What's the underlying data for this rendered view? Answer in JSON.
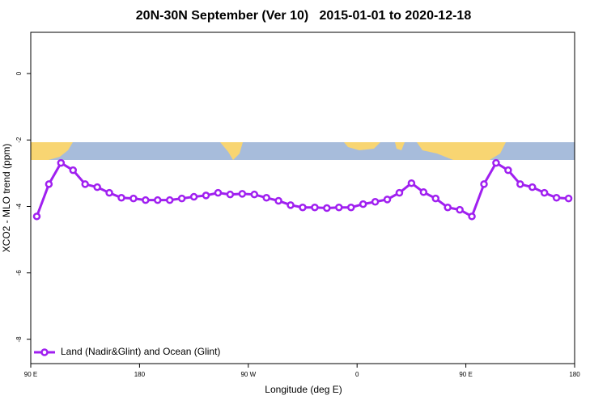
{
  "chart_data": {
    "type": "line",
    "title": "20N-30N September (Ver 10)   2015-01-01 to 2020-12-18",
    "x_label": "Longitude (deg E)",
    "y_label": "XCO2 - MLO trend (ppm)",
    "x": [
      95,
      105,
      115,
      125,
      135,
      145,
      155,
      165,
      175,
      185,
      195,
      205,
      215,
      225,
      235,
      245,
      255,
      265,
      275,
      285,
      295,
      305,
      315,
      325,
      335,
      345,
      355,
      365,
      375,
      385,
      395,
      405,
      415,
      425,
      435,
      445,
      455,
      465,
      475,
      485,
      495,
      505,
      515,
      525,
      535
    ],
    "series": [
      {
        "name": "Land (Nadir&Glint) and Ocean (Glint)",
        "color": "#a020f0",
        "values": [
          -4.3,
          -3.33,
          -2.69,
          -2.91,
          -3.33,
          -3.42,
          -3.59,
          -3.74,
          -3.76,
          -3.81,
          -3.81,
          -3.81,
          -3.76,
          -3.71,
          -3.67,
          -3.59,
          -3.64,
          -3.62,
          -3.64,
          -3.74,
          -3.83,
          -3.96,
          -4.03,
          -4.03,
          -4.05,
          -4.03,
          -4.03,
          -3.93,
          -3.86,
          -3.79,
          -3.59,
          -3.3,
          -3.57,
          -3.76,
          -4.03,
          -4.1,
          -4.3,
          -3.33,
          -2.69,
          -2.91,
          -3.33,
          -3.42,
          -3.59,
          -3.74,
          -3.76
        ]
      }
    ],
    "xlim": [
      90,
      540
    ],
    "xticks": [
      {
        "value": 90,
        "label": "90 E"
      },
      180,
      {
        "value": 270,
        "label": "90 W"
      },
      {
        "value": 360,
        "label": "0"
      },
      {
        "value": 450,
        "label": "90 E"
      },
      {
        "value": 540,
        "label": "180"
      }
    ],
    "ylim": [
      -8.73,
      1.24
    ],
    "yticks": [
      0,
      -2,
      -4,
      -6,
      -8
    ],
    "legend": "bottom-left"
  }
}
